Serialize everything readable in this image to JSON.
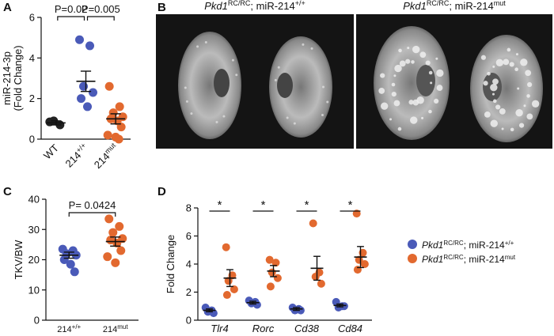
{
  "panel_labels": [
    "A",
    "B",
    "C",
    "D"
  ],
  "images": {
    "titles": [
      [
        "Pkd1",
        "RC/RC",
        "; miR-214",
        "+/+"
      ],
      [
        "Pkd1",
        "RC/RC",
        "; miR-214",
        "mut"
      ]
    ]
  },
  "chart_data": [
    {
      "type": "dot",
      "ylabel": [
        "miR-214-3p",
        "(Fold Change)"
      ],
      "categories": [
        [
          "WT"
        ],
        [
          "214",
          "+/+"
        ],
        [
          "214",
          "mut"
        ]
      ],
      "colors": [
        "#222222",
        "#4a5ab8",
        "#e2692f"
      ],
      "values": [
        [
          0.85,
          0.7,
          0.9
        ],
        [
          4.9,
          4.6,
          2.6,
          2.3,
          2.0,
          1.6
        ],
        [
          2.6,
          1.6,
          1.3,
          1.1,
          1.0,
          0.9,
          0.6,
          0.2,
          0.1,
          0.0
        ]
      ],
      "means": [
        0.8,
        2.85,
        1.0
      ],
      "sems": [
        0.1,
        0.5,
        0.25
      ],
      "ylim": [
        0,
        6
      ],
      "yticks": [
        0,
        2,
        4,
        6
      ],
      "annotations": [
        "P=0.02",
        "P=0.005"
      ]
    },
    {
      "type": "dot",
      "ylabel": [
        "TKV/BW"
      ],
      "categories": [
        [
          "214",
          "+/+"
        ],
        [
          "214",
          "mut"
        ]
      ],
      "colors": [
        "#4a5ab8",
        "#e2692f"
      ],
      "values": [
        [
          23.5,
          23,
          22,
          21.5,
          20,
          18.5,
          16
        ],
        [
          33.5,
          31,
          29,
          27,
          26.5,
          25.5,
          23,
          21,
          19
        ]
      ],
      "means": [
        21.5,
        26
      ],
      "sems": [
        1,
        1.5
      ],
      "ylim": [
        0,
        40
      ],
      "yticks": [
        0,
        10,
        20,
        30,
        40
      ],
      "annotations": [
        "P= 0.0424"
      ]
    },
    {
      "type": "grouped-dot",
      "ylabel": [
        "Fold Change"
      ],
      "categories": [
        "Tlr4",
        "Rorc",
        "Cd38",
        "Cd84"
      ],
      "series": [
        {
          "name": [
            "Pkd1",
            "RC/RC",
            "; miR-214",
            "+/+"
          ],
          "color": "#4a5ab8",
          "values": [
            [
              0.9,
              0.7,
              0.6,
              0.5
            ],
            [
              1.4,
              1.3,
              1.2,
              1.1
            ],
            [
              0.9,
              0.8,
              0.7,
              0.7
            ],
            [
              1.3,
              1.0,
              0.9,
              1.0
            ]
          ],
          "means": [
            0.7,
            1.25,
            0.8,
            1.05
          ],
          "sems": [
            0.1,
            0.1,
            0.1,
            0.1
          ]
        },
        {
          "name": [
            "Pkd1",
            "RC/RC",
            "; miR-214",
            "mut"
          ],
          "color": "#e2692f",
          "values": [
            [
              5.2,
              3.2,
              2.8,
              2.2,
              1.8
            ],
            [
              4.3,
              4.1,
              3.4,
              3.0,
              2.4
            ],
            [
              6.9,
              3.4,
              3.1,
              2.6
            ],
            [
              7.6,
              4.8,
              4.3,
              4.0,
              3.6
            ]
          ],
          "means": [
            3.0,
            3.5,
            3.7,
            4.5
          ],
          "sems": [
            0.6,
            0.4,
            0.85,
            0.75
          ]
        }
      ],
      "ylim": [
        0,
        8
      ],
      "yticks": [
        0,
        2,
        4,
        6,
        8
      ],
      "annotations": [
        "*",
        "*",
        "*",
        "*"
      ]
    }
  ]
}
